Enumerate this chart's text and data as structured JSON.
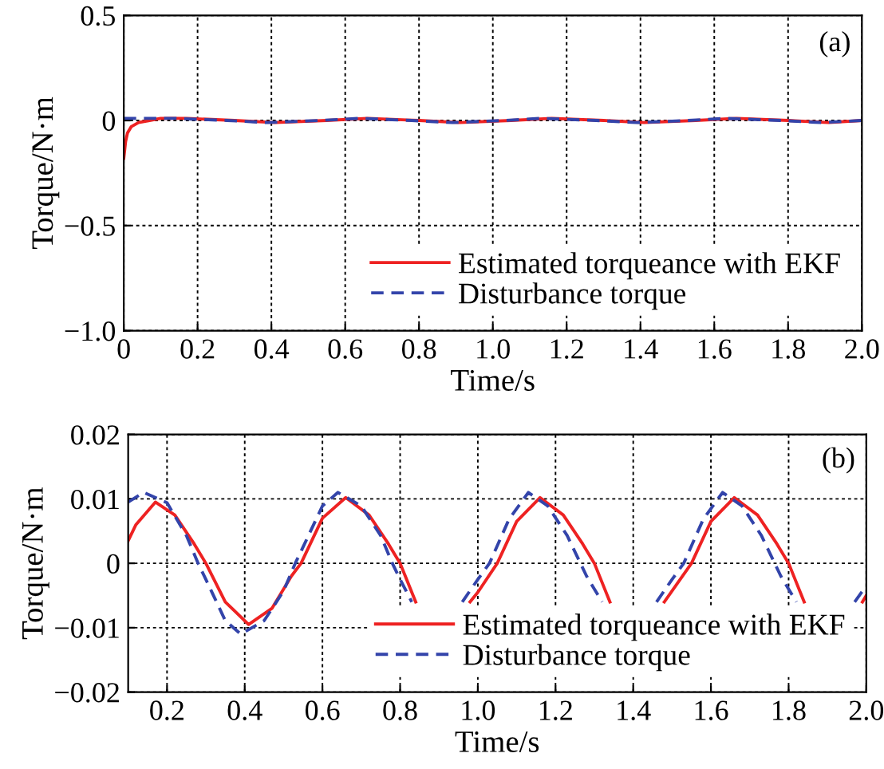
{
  "chart_data": [
    {
      "type": "line",
      "xlabel": "Time/s",
      "ylabel": "Torque/N·m",
      "annotations": [
        "(a)"
      ],
      "xlim": [
        0,
        2.0
      ],
      "ylim": [
        -1.0,
        0.5
      ],
      "xticks": [
        {
          "value": 0,
          "label": "0"
        },
        0.2,
        0.4,
        0.6,
        0.8,
        {
          "value": 1,
          "label": "1.0"
        },
        1.2,
        1.4,
        1.6,
        1.8,
        {
          "value": 2,
          "label": "2.0"
        }
      ],
      "yticks": [
        {
          "value": -1,
          "label": "−1.0"
        },
        {
          "value": -0.5,
          "label": "−0.5"
        },
        0,
        0.5
      ],
      "grid": true,
      "legend": "bottom right",
      "series": [
        {
          "name": "Estimated torqueance with EKF",
          "color": "#ee2222",
          "line_style": "solid",
          "x": [
            0,
            0.005,
            0.01,
            0.02,
            0.04,
            0.07,
            0.1,
            0.17,
            0.3,
            0.41,
            0.55,
            0.66,
            0.8,
            0.91,
            1.05,
            1.16,
            1.3,
            1.41,
            1.55,
            1.66,
            1.8,
            1.91,
            2.0
          ],
          "values": [
            -0.18,
            -0.1,
            -0.06,
            -0.03,
            -0.01,
            0,
            0.01,
            0.01,
            0,
            -0.01,
            0,
            0.01,
            0,
            -0.01,
            0,
            0.01,
            0,
            -0.01,
            0,
            0.01,
            0,
            -0.01,
            0
          ]
        },
        {
          "name": "Disturbance torque",
          "color": "#3344aa",
          "line_style": "dashed",
          "x": [
            0,
            0.14,
            0.28,
            0.39,
            0.53,
            0.64,
            0.78,
            0.89,
            1.03,
            1.13,
            1.28,
            1.39,
            1.53,
            1.63,
            1.78,
            1.89,
            2.0
          ],
          "values": [
            0.01,
            0.01,
            0,
            -0.01,
            0,
            0.01,
            0,
            -0.01,
            0,
            0.01,
            0,
            -0.01,
            0,
            0.01,
            0,
            -0.01,
            0
          ]
        }
      ]
    },
    {
      "type": "line",
      "xlabel": "Time/s",
      "ylabel": "Torque/N·m",
      "annotations": [
        "(b)"
      ],
      "xlim": [
        0.1,
        2.0
      ],
      "ylim": [
        -0.02,
        0.02
      ],
      "xticks": [
        0.2,
        0.4,
        0.6,
        0.8,
        {
          "value": 1,
          "label": "1.0"
        },
        1.2,
        1.4,
        1.6,
        1.8,
        {
          "value": 2,
          "label": "2.0"
        }
      ],
      "yticks": [
        {
          "value": -0.02,
          "label": "−0.02"
        },
        {
          "value": -0.01,
          "label": "−0.01"
        },
        0,
        0.01,
        0.02
      ],
      "grid": true,
      "legend": "bottom right",
      "series": [
        {
          "name": "Estimated torqueance with EKF",
          "color": "#ee2222",
          "line_style": "solid",
          "x": [
            0.1,
            0.12,
            0.17,
            0.22,
            0.27,
            0.3,
            0.35,
            0.41,
            0.47,
            0.52,
            0.545,
            0.6,
            0.66,
            0.72,
            0.77,
            0.8,
            0.84,
            0.9,
            0.98,
            1.0,
            1.05,
            1.1,
            1.16,
            1.22,
            1.27,
            1.3,
            1.34,
            1.4,
            1.48,
            1.55,
            1.6,
            1.66,
            1.72,
            1.77,
            1.8,
            1.84,
            1.9,
            1.99,
            2.0
          ],
          "values": [
            0.0035,
            0.006,
            0.0095,
            0.0075,
            0.003,
            0,
            -0.006,
            -0.0095,
            -0.007,
            -0.002,
            0,
            0.007,
            0.0102,
            0.0075,
            0.003,
            0,
            -0.006,
            null,
            -0.006,
            -0.0045,
            0,
            0.0065,
            0.0102,
            0.0075,
            0.003,
            0,
            -0.006,
            null,
            -0.006,
            0,
            0.0065,
            0.0102,
            0.0075,
            0.003,
            0,
            -0.006,
            null,
            -0.006,
            -0.005
          ]
        },
        {
          "name": "Disturbance torque",
          "color": "#3344aa",
          "line_style": "dashed",
          "x": [
            0.1,
            0.14,
            0.2,
            0.25,
            0.28,
            0.3,
            0.35,
            0.39,
            0.45,
            0.5,
            0.53,
            0.55,
            0.6,
            0.64,
            0.7,
            0.75,
            0.78,
            0.8,
            0.83,
            0.9,
            0.96,
            1.0,
            1.03,
            1.08,
            1.13,
            1.18,
            1.23,
            1.28,
            1.32,
            1.4,
            1.46,
            1.5,
            1.53,
            1.58,
            1.63,
            1.68,
            1.73,
            1.78,
            1.82,
            1.9,
            1.97,
            2.0
          ],
          "values": [
            0.0095,
            0.011,
            0.0094,
            0.0043,
            0,
            -0.0025,
            -0.0089,
            -0.011,
            -0.0089,
            -0.0043,
            0,
            0.0025,
            0.0089,
            0.011,
            0.0089,
            0.0043,
            0,
            -0.0025,
            -0.006,
            null,
            -0.006,
            -0.0025,
            0,
            0.0068,
            0.011,
            0.0089,
            0.0043,
            -0.002,
            -0.006,
            null,
            -0.006,
            -0.0025,
            0,
            0.0068,
            0.011,
            0.0089,
            0.0043,
            -0.002,
            -0.006,
            null,
            -0.006,
            -0.0035
          ]
        }
      ]
    }
  ]
}
